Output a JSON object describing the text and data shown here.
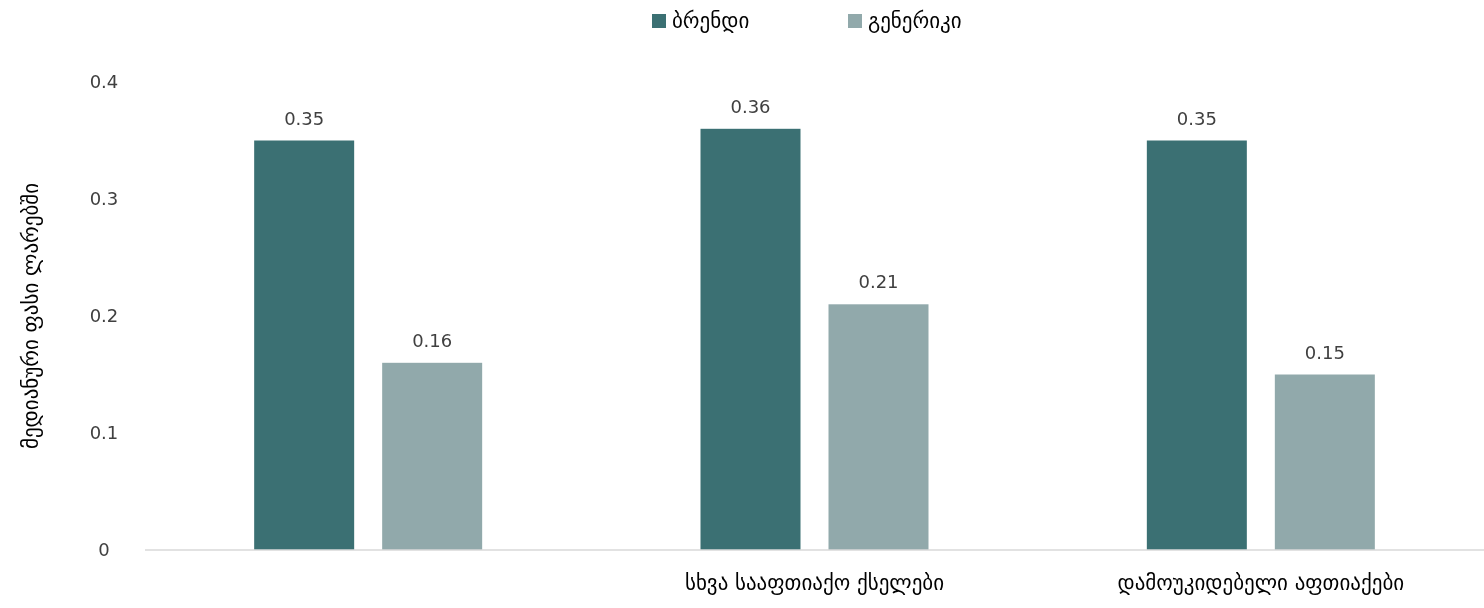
{
  "chart_data": {
    "type": "bar",
    "ylabel": "მედიანური ფასი ლარებში",
    "categories": [
      null,
      "სხვა სააფთიაქო ქსელები",
      "დამოუკიდებელი აფთიაქები"
    ],
    "series": [
      {
        "name": "ბრენდი",
        "color": "#3b7073",
        "values": [
          0.35,
          0.36,
          0.35
        ]
      },
      {
        "name": "გენერიკი",
        "color": "#91a9ab",
        "values": [
          0.16,
          0.21,
          0.15
        ]
      }
    ],
    "ylim": [
      0,
      0.4
    ],
    "yticks": [
      0,
      0.1,
      0.2,
      0.3,
      0.4
    ],
    "data_labels": true,
    "legend": "top",
    "grid": false
  }
}
